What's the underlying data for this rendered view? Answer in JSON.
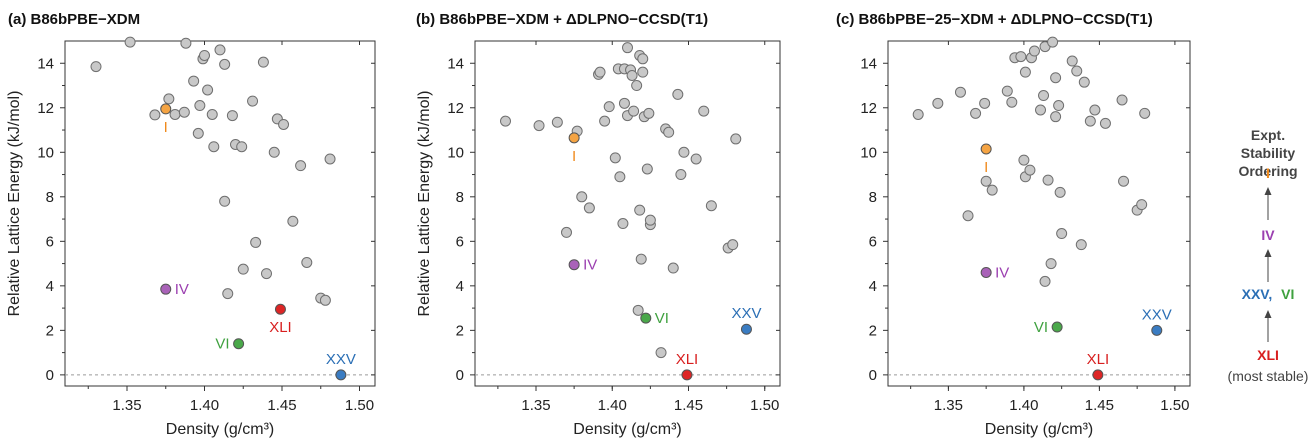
{
  "chart_data": [
    {
      "type": "scatter",
      "title": "(a) B86bPBE−XDM",
      "xlabel": "Density (g/cm³)",
      "ylabel": "Relative Lattice Energy (kJ/mol)",
      "xlim": [
        1.31,
        1.51
      ],
      "ylim": [
        -0.5,
        15.0
      ],
      "xticks": [
        "1.35",
        "1.40",
        "1.45",
        "1.50"
      ],
      "yticks": [
        "0",
        "2",
        "4",
        "6",
        "8",
        "10",
        "12",
        "14"
      ],
      "reference_line_y": 0,
      "grey_points": [
        [
          1.33,
          13.85
        ],
        [
          1.352,
          14.95
        ],
        [
          1.368,
          11.68
        ],
        [
          1.377,
          12.4
        ],
        [
          1.381,
          11.7
        ],
        [
          1.387,
          11.8
        ],
        [
          1.388,
          14.9
        ],
        [
          1.393,
          13.2
        ],
        [
          1.396,
          10.85
        ],
        [
          1.397,
          12.1
        ],
        [
          1.399,
          14.2
        ],
        [
          1.4,
          14.35
        ],
        [
          1.402,
          12.8
        ],
        [
          1.405,
          11.7
        ],
        [
          1.406,
          10.25
        ],
        [
          1.41,
          14.6
        ],
        [
          1.413,
          13.95
        ],
        [
          1.413,
          7.8
        ],
        [
          1.415,
          3.65
        ],
        [
          1.418,
          11.65
        ],
        [
          1.42,
          10.35
        ],
        [
          1.424,
          10.25
        ],
        [
          1.425,
          4.75
        ],
        [
          1.431,
          12.3
        ],
        [
          1.433,
          5.95
        ],
        [
          1.438,
          14.05
        ],
        [
          1.44,
          4.55
        ],
        [
          1.445,
          10.0
        ],
        [
          1.447,
          11.5
        ],
        [
          1.451,
          11.25
        ],
        [
          1.457,
          6.9
        ],
        [
          1.462,
          9.4
        ],
        [
          1.466,
          5.05
        ],
        [
          1.475,
          3.45
        ],
        [
          1.478,
          3.35
        ],
        [
          1.481,
          9.7
        ]
      ],
      "highlighted": [
        {
          "label": "I",
          "x": 1.375,
          "y": 11.95,
          "color": "#f5a443",
          "label_pos": "below"
        },
        {
          "label": "IV",
          "x": 1.375,
          "y": 3.85,
          "color": "#a962b8",
          "label_pos": "right"
        },
        {
          "label": "XLI",
          "x": 1.449,
          "y": 2.95,
          "color": "#dd2525",
          "label_pos": "below"
        },
        {
          "label": "VI",
          "x": 1.422,
          "y": 1.4,
          "color": "#4aa84a",
          "label_pos": "left"
        },
        {
          "label": "XXV",
          "x": 1.488,
          "y": 0.0,
          "color": "#3a7cc2",
          "label_pos": "above"
        }
      ]
    },
    {
      "type": "scatter",
      "title": "(b) B86bPBE−XDM + ΔDLPNO−CCSD(T1)",
      "xlabel": "Density (g/cm³)",
      "ylabel": "Relative Lattice Energy (kJ/mol)",
      "xlim": [
        1.31,
        1.51
      ],
      "ylim": [
        -0.5,
        15.0
      ],
      "xticks": [
        "1.35",
        "1.40",
        "1.45",
        "1.50"
      ],
      "yticks": [
        "0",
        "2",
        "4",
        "6",
        "8",
        "10",
        "12",
        "14"
      ],
      "reference_line_y": 0,
      "grey_points": [
        [
          1.33,
          11.4
        ],
        [
          1.352,
          11.2
        ],
        [
          1.364,
          11.35
        ],
        [
          1.37,
          6.4
        ],
        [
          1.377,
          10.95
        ],
        [
          1.38,
          8.0
        ],
        [
          1.385,
          7.5
        ],
        [
          1.391,
          13.5
        ],
        [
          1.392,
          13.6
        ],
        [
          1.395,
          11.4
        ],
        [
          1.398,
          12.05
        ],
        [
          1.402,
          9.75
        ],
        [
          1.404,
          13.75
        ],
        [
          1.405,
          8.9
        ],
        [
          1.407,
          6.8
        ],
        [
          1.408,
          13.75
        ],
        [
          1.408,
          12.2
        ],
        [
          1.41,
          11.65
        ],
        [
          1.41,
          14.7
        ],
        [
          1.412,
          13.7
        ],
        [
          1.413,
          13.45
        ],
        [
          1.414,
          11.85
        ],
        [
          1.416,
          13.0
        ],
        [
          1.417,
          2.9
        ],
        [
          1.418,
          14.35
        ],
        [
          1.418,
          7.4
        ],
        [
          1.419,
          5.2
        ],
        [
          1.42,
          13.6
        ],
        [
          1.42,
          14.2
        ],
        [
          1.421,
          11.6
        ],
        [
          1.423,
          9.25
        ],
        [
          1.424,
          11.75
        ],
        [
          1.425,
          6.75
        ],
        [
          1.425,
          6.95
        ],
        [
          1.432,
          1.0
        ],
        [
          1.435,
          11.05
        ],
        [
          1.437,
          10.9
        ],
        [
          1.44,
          4.8
        ],
        [
          1.443,
          12.6
        ],
        [
          1.445,
          9.0
        ],
        [
          1.447,
          10.0
        ],
        [
          1.455,
          9.7
        ],
        [
          1.46,
          11.85
        ],
        [
          1.465,
          7.6
        ],
        [
          1.476,
          5.7
        ],
        [
          1.479,
          5.85
        ],
        [
          1.481,
          10.6
        ]
      ],
      "highlighted": [
        {
          "label": "I",
          "x": 1.375,
          "y": 10.65,
          "color": "#f5a443",
          "label_pos": "below"
        },
        {
          "label": "IV",
          "x": 1.375,
          "y": 4.95,
          "color": "#a962b8",
          "label_pos": "right"
        },
        {
          "label": "VI",
          "x": 1.422,
          "y": 2.55,
          "color": "#4aa84a",
          "label_pos": "right"
        },
        {
          "label": "XXV",
          "x": 1.488,
          "y": 2.05,
          "color": "#3a7cc2",
          "label_pos": "above"
        },
        {
          "label": "XLI",
          "x": 1.449,
          "y": 0.0,
          "color": "#dd2525",
          "label_pos": "above"
        }
      ]
    },
    {
      "type": "scatter",
      "title": "(c) B86bPBE−25−XDM + ΔDLPNO−CCSD(T1)",
      "xlabel": "Density (g/cm³)",
      "ylabel": "",
      "xlim": [
        1.31,
        1.51
      ],
      "ylim": [
        -0.5,
        15.0
      ],
      "xticks": [
        "1.35",
        "1.40",
        "1.45",
        "1.50"
      ],
      "yticks": [
        "0",
        "2",
        "4",
        "6",
        "8",
        "10",
        "12",
        "14"
      ],
      "reference_line_y": 0,
      "grey_points": [
        [
          1.33,
          11.7
        ],
        [
          1.343,
          12.2
        ],
        [
          1.358,
          12.7
        ],
        [
          1.363,
          7.15
        ],
        [
          1.368,
          11.75
        ],
        [
          1.374,
          12.2
        ],
        [
          1.375,
          8.7
        ],
        [
          1.379,
          8.3
        ],
        [
          1.389,
          12.75
        ],
        [
          1.392,
          12.25
        ],
        [
          1.394,
          14.25
        ],
        [
          1.398,
          14.3
        ],
        [
          1.4,
          9.65
        ],
        [
          1.401,
          8.9
        ],
        [
          1.401,
          13.6
        ],
        [
          1.404,
          9.2
        ],
        [
          1.405,
          14.25
        ],
        [
          1.407,
          14.55
        ],
        [
          1.411,
          11.9
        ],
        [
          1.413,
          12.55
        ],
        [
          1.414,
          4.2
        ],
        [
          1.414,
          14.75
        ],
        [
          1.416,
          8.75
        ],
        [
          1.418,
          5.0
        ],
        [
          1.419,
          14.95
        ],
        [
          1.421,
          13.35
        ],
        [
          1.421,
          11.6
        ],
        [
          1.423,
          12.1
        ],
        [
          1.424,
          8.2
        ],
        [
          1.425,
          6.35
        ],
        [
          1.432,
          14.1
        ],
        [
          1.435,
          13.65
        ],
        [
          1.438,
          5.85
        ],
        [
          1.44,
          13.15
        ],
        [
          1.444,
          11.4
        ],
        [
          1.447,
          11.9
        ],
        [
          1.454,
          11.3
        ],
        [
          1.465,
          12.35
        ],
        [
          1.466,
          8.7
        ],
        [
          1.475,
          7.4
        ],
        [
          1.478,
          7.65
        ],
        [
          1.48,
          11.75
        ]
      ],
      "highlighted": [
        {
          "label": "I",
          "x": 1.375,
          "y": 10.15,
          "color": "#f5a443",
          "label_pos": "below"
        },
        {
          "label": "IV",
          "x": 1.375,
          "y": 4.6,
          "color": "#a962b8",
          "label_pos": "right"
        },
        {
          "label": "VI",
          "x": 1.422,
          "y": 2.15,
          "color": "#4aa84a",
          "label_pos": "left"
        },
        {
          "label": "XXV",
          "x": 1.488,
          "y": 2.0,
          "color": "#3a7cc2",
          "label_pos": "above"
        },
        {
          "label": "XLI",
          "x": 1.449,
          "y": 0.0,
          "color": "#dd2525",
          "label_pos": "above"
        }
      ]
    }
  ],
  "side_legend": {
    "title_lines": [
      "Expt.",
      "Stability",
      "Ordering"
    ],
    "item_1": "I",
    "item_2": "IV",
    "item_3a": "XXV,",
    "item_3b": "VI",
    "item_4": "XLI",
    "footer": "(most stable)"
  },
  "colors": {
    "grey_fill": "#c8c8c8",
    "grey_stroke": "#6f6f6f",
    "I": "#f08a1c",
    "IV": "#9b3fb0",
    "VI": "#3fa13f",
    "XXV": "#2b6fb5",
    "XLI": "#d81f1f"
  }
}
